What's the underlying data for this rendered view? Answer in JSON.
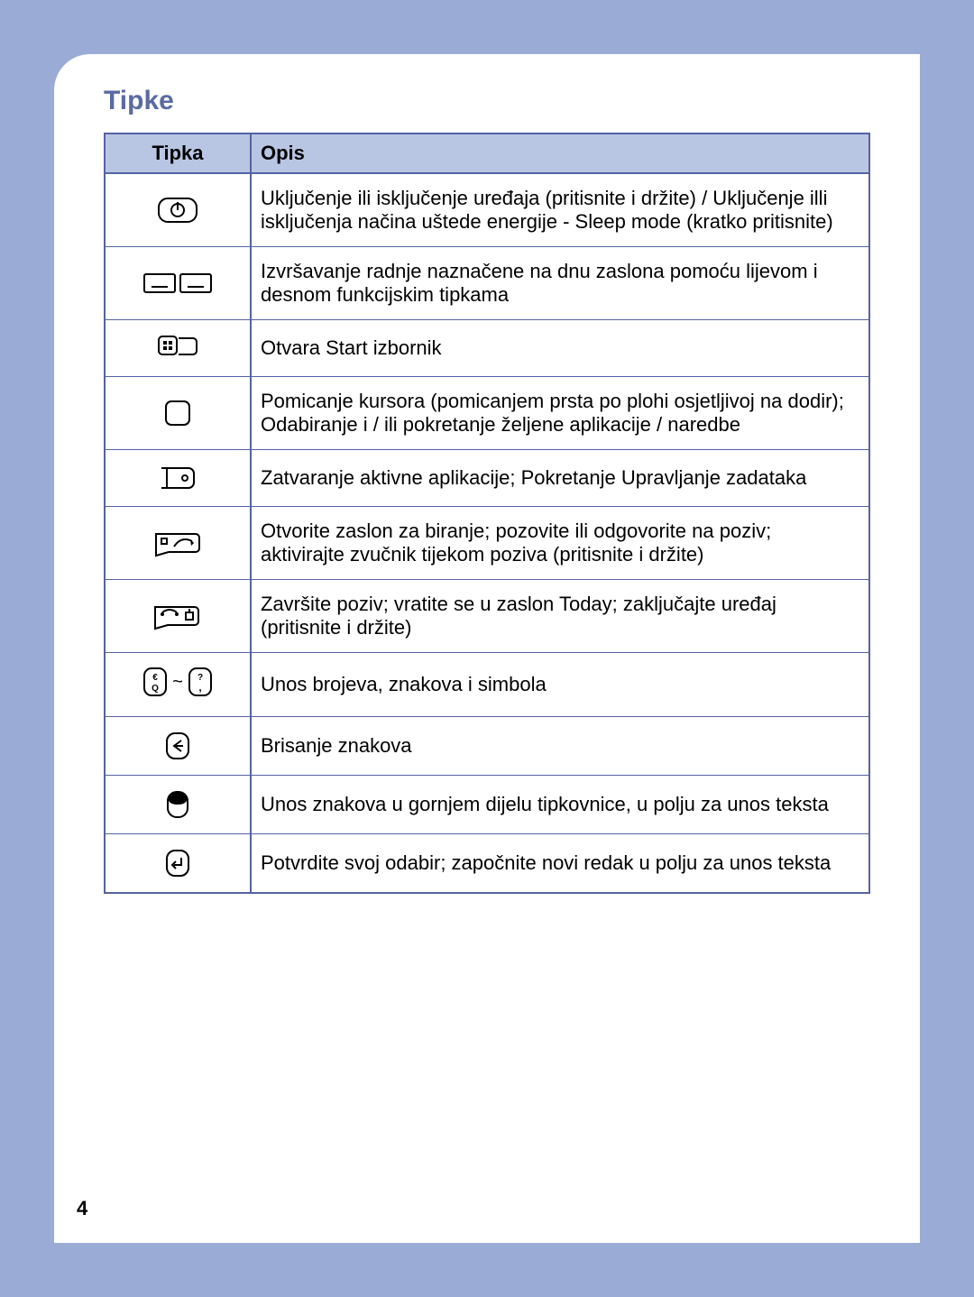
{
  "page_number": "4",
  "title": "Tipke",
  "columns": {
    "key": "Tipka",
    "desc": "Opis"
  },
  "rows": [
    {
      "icon": "power",
      "desc": "Uključenje ili isključenje uređaja (pritisnite i držite) / Uključenje illi isključenja načina uštede energije - Sleep mode (kratko pritisnite)"
    },
    {
      "icon": "softkeys",
      "desc": "Izvršavanje radnje naznačene na dnu zaslona pomoću lijevom i desnom funkcijskim tipkama"
    },
    {
      "icon": "start",
      "desc": "Otvara Start izbornik"
    },
    {
      "icon": "touchpad",
      "desc": "Pomicanje kursora (pomicanjem prsta po plohi osjetljivoj na dodir); Odabiranje i / ili pokretanje željene aplikacije / naredbe"
    },
    {
      "icon": "close",
      "desc": "Zatvaranje aktivne aplikacije; Pokretanje Upravljanje zadataka"
    },
    {
      "icon": "call",
      "desc": "Otvorite zaslon za biranje; pozovite ili odgovorite na poziv; aktivirajte zvučnik tijekom poziva (pritisnite i držite)"
    },
    {
      "icon": "endcall",
      "desc": "Završite poziv; vratite se u zaslon Today; zaključajte uređaj (pritisnite i držite)"
    },
    {
      "icon": "charkeys",
      "desc": "Unos brojeva, znakova i simbola"
    },
    {
      "icon": "backspace",
      "desc": "Brisanje znakova"
    },
    {
      "icon": "shift",
      "desc": "Unos znakova u gornjem dijelu tipkovnice, u polju za unos teksta"
    },
    {
      "icon": "enter",
      "desc": "Potvrdite svoj odabir; započnite novi redak u polju za unos teksta"
    }
  ],
  "style": {
    "page_bg": "#9aabd5",
    "card_bg": "#ffffff",
    "header_bg": "#b8c6e3",
    "border_color": "#5562a5",
    "title_color": "#5a6aa3",
    "body_fontsize": 22,
    "title_fontsize": 30
  }
}
